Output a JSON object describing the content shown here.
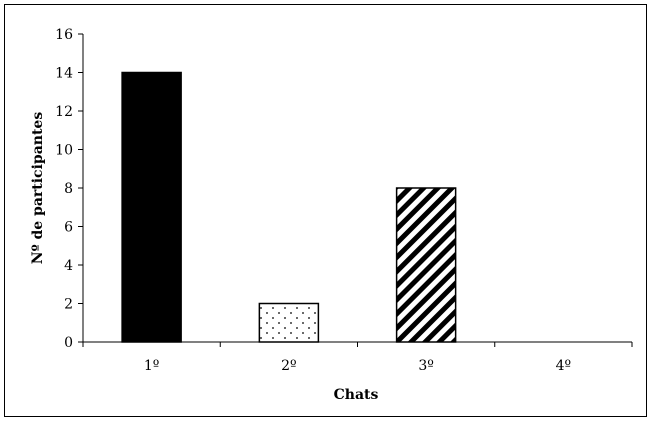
{
  "chart_data": {
    "type": "bar",
    "categories": [
      "1º",
      "2º",
      "3º",
      "4º"
    ],
    "values": [
      14,
      2,
      8,
      0
    ],
    "patterns": [
      "solid",
      "dots",
      "diagonal-stripes",
      "none"
    ],
    "title": "",
    "xlabel": "Chats",
    "ylabel": "Nº de participantes",
    "ylim": [
      0,
      16
    ],
    "yticks": [
      0,
      2,
      4,
      6,
      8,
      10,
      12,
      14,
      16
    ],
    "grid": false,
    "legend": "none",
    "colors": {
      "bar_fill": "#000000",
      "bar_stroke": "#000000",
      "background": "#ffffff"
    }
  }
}
